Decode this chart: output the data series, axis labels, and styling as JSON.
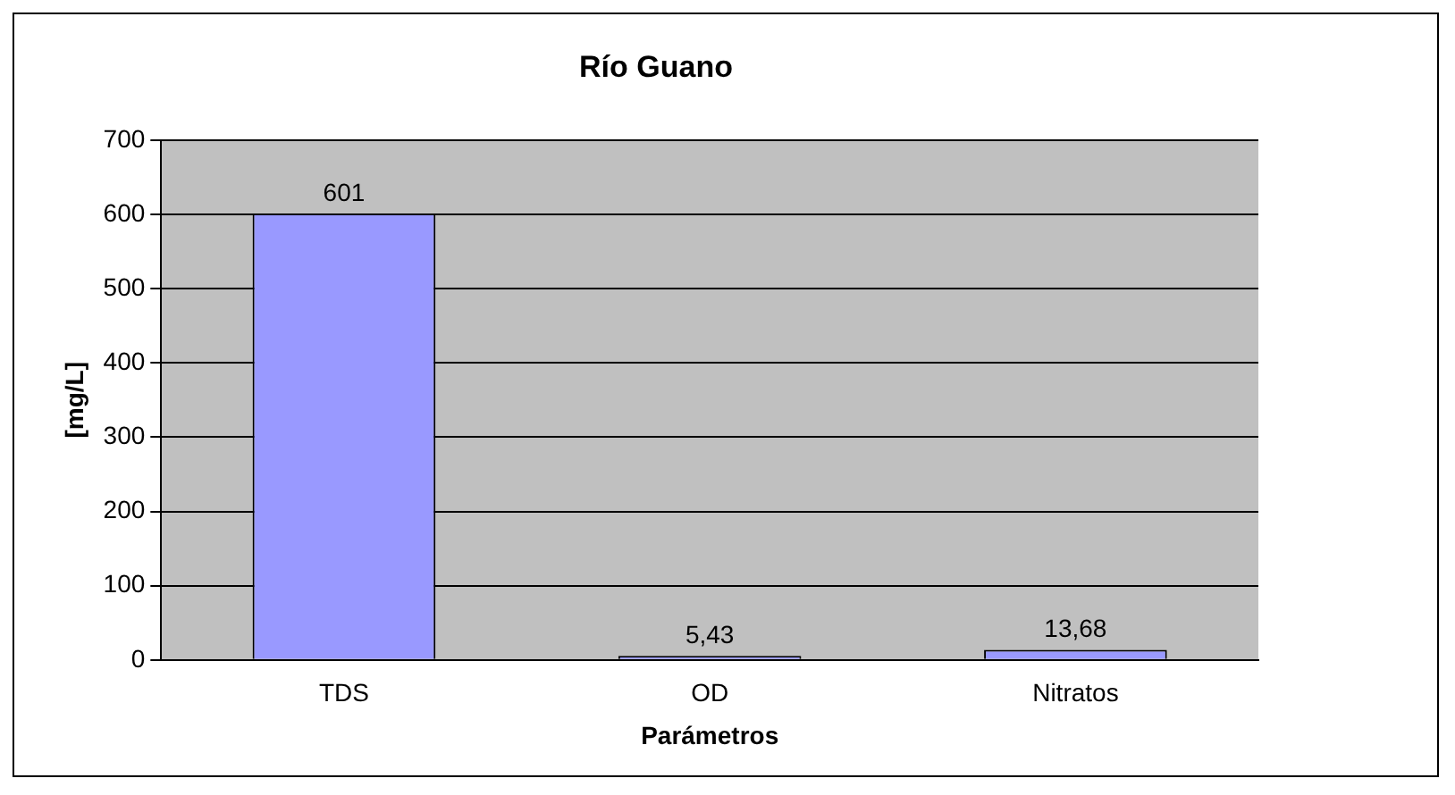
{
  "chart_data": {
    "type": "bar",
    "title": "Río Guano",
    "xlabel": "Parámetros",
    "ylabel": "[mg/L]",
    "categories": [
      "TDS",
      "OD",
      "Nitratos"
    ],
    "values": [
      601,
      5.43,
      13.68
    ],
    "value_labels": [
      "601",
      "5,43",
      "13,68"
    ],
    "color": "#9999ff",
    "ylim": [
      0,
      700
    ],
    "yticks": [
      0,
      100,
      200,
      300,
      400,
      500,
      600,
      700
    ],
    "grid": "y"
  }
}
